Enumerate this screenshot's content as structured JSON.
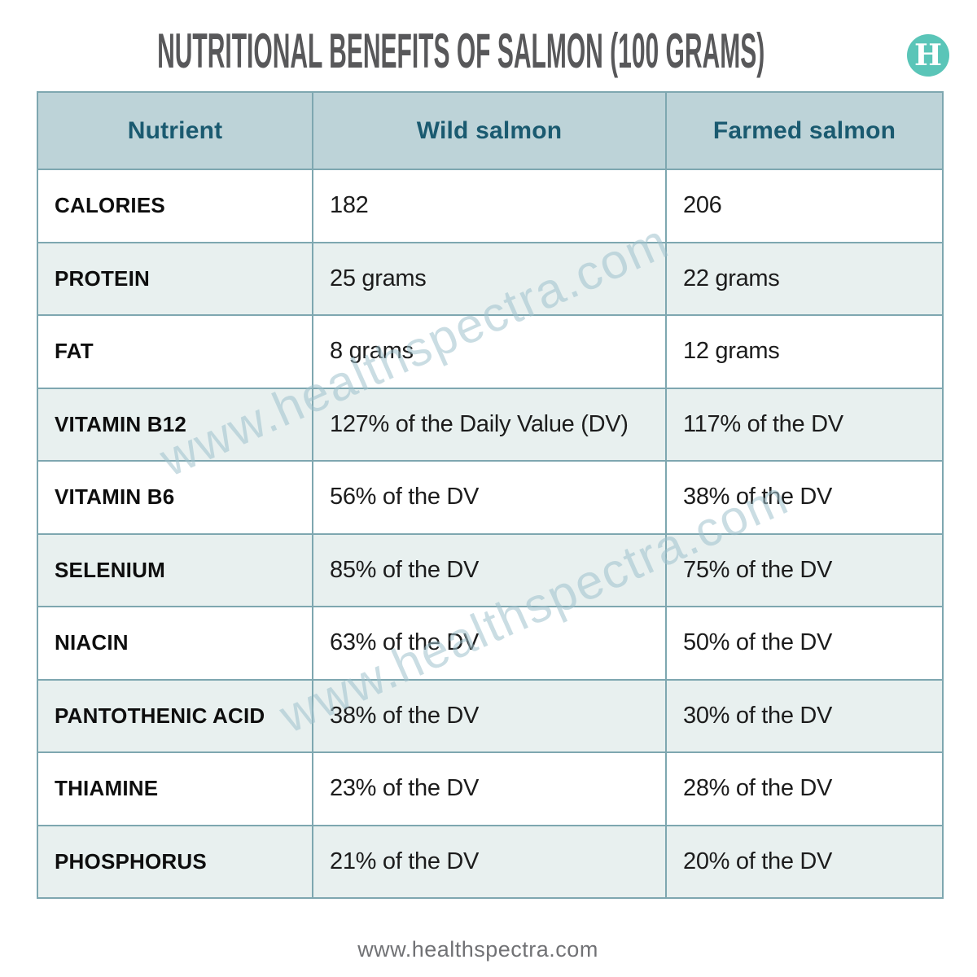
{
  "page": {
    "title": "NUTRITIONAL BENEFITS OF SALMON (100 GRAMS)",
    "logo_letter": "H",
    "watermark_text": "www.healthspectra.com",
    "footer_url": "www.healthspectra.com"
  },
  "colors": {
    "title_text": "#58585a",
    "logo_teal": "#5ac5b8",
    "header_bg": "#bdd3d8",
    "header_text": "#1a5a70",
    "row_alt_bg": "#e8f0ef",
    "row_bg": "#ffffff",
    "table_border": "#7ea7b0",
    "body_text": "#1c1c1c",
    "watermark": "#9fc2cd",
    "footer_text": "#717275"
  },
  "chart_data": {
    "type": "table",
    "title": "NUTRITIONAL BENEFITS OF SALMON (100 GRAMS)",
    "columns": [
      "Nutrient",
      "Wild salmon",
      "Farmed salmon"
    ],
    "rows": [
      [
        "CALORIES",
        "182",
        "206"
      ],
      [
        "PROTEIN",
        "25 grams",
        "22 grams"
      ],
      [
        "FAT",
        "8 grams",
        "12 grams"
      ],
      [
        "VITAMIN B12",
        "127% of the Daily Value (DV)",
        "117% of the DV"
      ],
      [
        "VITAMIN B6",
        "56% of the DV",
        "38% of the DV"
      ],
      [
        "SELENIUM",
        "85% of the DV",
        "75% of the DV"
      ],
      [
        "NIACIN",
        "63% of the DV",
        "50% of the DV"
      ],
      [
        "PANTOTHENIC ACID",
        "38% of the DV",
        "30% of the DV"
      ],
      [
        "THIAMINE",
        "23% of the DV",
        "28% of the DV"
      ],
      [
        "PHOSPHORUS",
        "21% of the DV",
        "20% of the DV"
      ]
    ]
  }
}
